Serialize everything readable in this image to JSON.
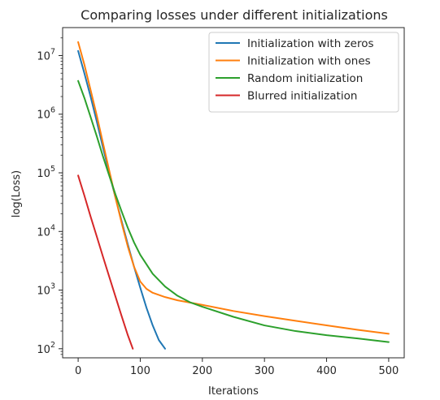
{
  "chart_data": {
    "type": "line",
    "title": "Comparing losses under different initializations",
    "xlabel": "Iterations",
    "ylabel": "log(Loss)",
    "yscale": "log",
    "xlim": [
      -25,
      525
    ],
    "ylim": [
      70,
      30000000
    ],
    "xticks": [
      0,
      100,
      200,
      300,
      400,
      500
    ],
    "xtick_labels": [
      "0",
      "100",
      "200",
      "300",
      "400",
      "500"
    ],
    "yticks": [
      100,
      1000,
      10000,
      100000,
      1000000,
      10000000
    ],
    "ytick_labels": [
      {
        "base": "10",
        "exp": "2"
      },
      {
        "base": "10",
        "exp": "3"
      },
      {
        "base": "10",
        "exp": "4"
      },
      {
        "base": "10",
        "exp": "5"
      },
      {
        "base": "10",
        "exp": "6"
      },
      {
        "base": "10",
        "exp": "7"
      }
    ],
    "grid": false,
    "legend_position": "top-right",
    "series": [
      {
        "name": "Initialization with zeros",
        "color": "#1f77b4",
        "x": [
          0,
          10,
          20,
          30,
          40,
          50,
          60,
          70,
          80,
          90,
          100,
          110,
          120,
          130,
          140
        ],
        "y": [
          12000000,
          5000000,
          2000000,
          750000,
          270000,
          100000,
          38000,
          15000,
          6000,
          2500,
          1100,
          500,
          250,
          140,
          100
        ]
      },
      {
        "name": "Initialization with ones",
        "color": "#ff7f0e",
        "x": [
          0,
          10,
          20,
          30,
          40,
          50,
          60,
          70,
          80,
          90,
          100,
          110,
          120,
          140,
          160,
          200,
          250,
          300,
          350,
          400,
          450,
          500
        ],
        "y": [
          17000000,
          7000000,
          2600000,
          950000,
          320000,
          110000,
          38000,
          14000,
          5500,
          2500,
          1400,
          1050,
          900,
          760,
          670,
          560,
          440,
          360,
          300,
          250,
          210,
          180
        ]
      },
      {
        "name": "Random initialization",
        "color": "#2ca02c",
        "x": [
          0,
          10,
          20,
          30,
          40,
          50,
          60,
          70,
          80,
          90,
          100,
          120,
          140,
          160,
          180,
          200,
          250,
          300,
          350,
          400,
          450,
          500
        ],
        "y": [
          3700000,
          1900000,
          900000,
          420000,
          190000,
          90000,
          43000,
          22000,
          11500,
          6500,
          4000,
          1900,
          1150,
          800,
          620,
          520,
          350,
          250,
          200,
          170,
          150,
          130
        ]
      },
      {
        "name": "Blurred initialization",
        "color": "#d62728",
        "x": [
          0,
          10,
          20,
          30,
          40,
          50,
          60,
          70,
          80,
          88
        ],
        "y": [
          90000,
          41000,
          18000,
          8200,
          3700,
          1700,
          780,
          360,
          170,
          100
        ]
      }
    ]
  }
}
